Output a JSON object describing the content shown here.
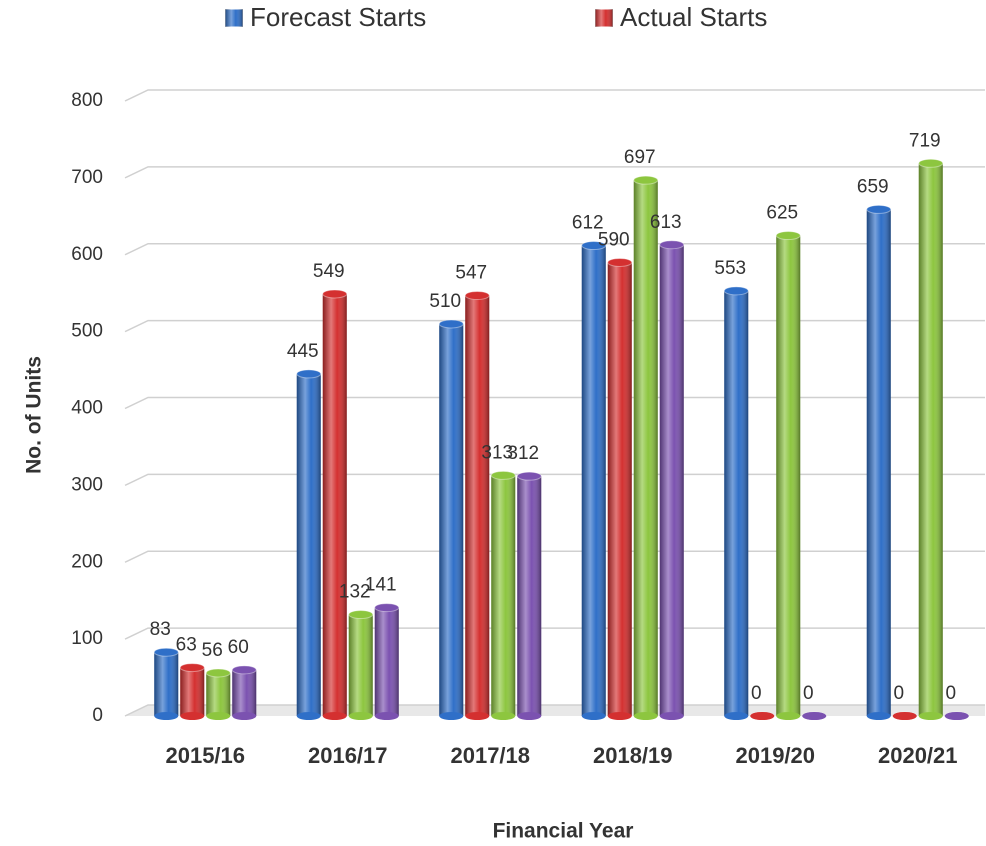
{
  "chart_data": {
    "type": "bar",
    "x_label": "Financial Year",
    "y_label": "No. of Units",
    "categories": [
      "2015/16",
      "2016/17",
      "2017/18",
      "2018/19",
      "2019/20",
      "2020/21"
    ],
    "series": [
      {
        "name": "Forecast Starts",
        "color": "#2f6fc8",
        "values": [
          83,
          445,
          510,
          612,
          553,
          659
        ]
      },
      {
        "name": "Actual Starts",
        "color": "#d43030",
        "values": [
          63,
          549,
          547,
          590,
          0,
          0
        ]
      },
      {
        "color": "#8dc63f",
        "values": [
          56,
          132,
          313,
          697,
          625,
          719
        ]
      },
      {
        "color": "#7b52b0",
        "values": [
          60,
          141,
          312,
          613,
          0,
          0
        ]
      }
    ],
    "ylim": [
      0,
      800
    ],
    "yticks": [
      0,
      100,
      200,
      300,
      400,
      500,
      600,
      700,
      800
    ],
    "grid": true
  }
}
